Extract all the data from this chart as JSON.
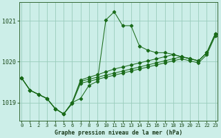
{
  "title": "Graphe pression niveau de la mer (hPa)",
  "bg_color": "#cceee8",
  "grid_color": "#99ccbb",
  "line_color": "#1a6b1a",
  "x_ticks": [
    0,
    1,
    2,
    3,
    4,
    5,
    6,
    7,
    8,
    9,
    10,
    11,
    12,
    13,
    14,
    15,
    16,
    17,
    18,
    19,
    20,
    21,
    22,
    23
  ],
  "y_ticks": [
    1019,
    1020,
    1021
  ],
  "ylim": [
    1018.55,
    1021.45
  ],
  "xlim": [
    -0.3,
    23.3
  ],
  "series": [
    [
      1019.6,
      1019.3,
      1019.2,
      1019.1,
      1018.85,
      1018.72,
      1019.0,
      1019.1,
      1019.42,
      1019.52,
      1021.02,
      1021.22,
      1020.88,
      1020.88,
      1020.38,
      1020.28,
      1020.22,
      1020.22,
      1020.18,
      1020.12,
      1020.08,
      1020.02,
      1020.22,
      1020.68
    ],
    [
      1019.6,
      1019.3,
      1019.2,
      1019.1,
      1018.85,
      1018.72,
      1019.0,
      1019.55,
      1019.62,
      1019.68,
      1019.75,
      1019.82,
      1019.87,
      1019.92,
      1019.97,
      1020.02,
      1020.07,
      1020.12,
      1020.17,
      1020.12,
      1020.07,
      1020.02,
      1020.22,
      1020.68
    ],
    [
      1019.6,
      1019.3,
      1019.2,
      1019.1,
      1018.85,
      1018.72,
      1019.0,
      1019.52,
      1019.57,
      1019.62,
      1019.67,
      1019.72,
      1019.77,
      1019.82,
      1019.87,
      1019.92,
      1019.97,
      1020.02,
      1020.07,
      1020.12,
      1020.07,
      1020.02,
      1020.22,
      1020.68
    ],
    [
      1019.6,
      1019.3,
      1019.2,
      1019.1,
      1018.85,
      1018.72,
      1018.97,
      1019.47,
      1019.52,
      1019.57,
      1019.62,
      1019.67,
      1019.72,
      1019.77,
      1019.82,
      1019.87,
      1019.92,
      1019.97,
      1020.02,
      1020.07,
      1020.02,
      1019.97,
      1020.17,
      1020.63
    ]
  ]
}
